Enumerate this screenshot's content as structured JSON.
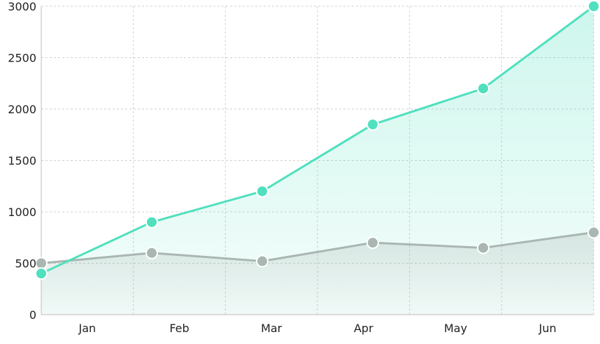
{
  "chart_data": {
    "type": "area",
    "categories": [
      "Jan",
      "Feb",
      "Mar",
      "Apr",
      "May",
      "Jun"
    ],
    "series": [
      {
        "values": [
          400,
          900,
          1200,
          1850,
          2200,
          3000
        ],
        "color": "#4fe0be"
      },
      {
        "values": [
          500,
          600,
          520,
          700,
          650,
          800
        ],
        "color": "#a9b6b1"
      }
    ],
    "ylim": [
      0,
      3000
    ],
    "yticks": [
      0,
      500,
      1000,
      1500,
      2000,
      2500,
      3000
    ],
    "grid": true,
    "legend": "none"
  }
}
